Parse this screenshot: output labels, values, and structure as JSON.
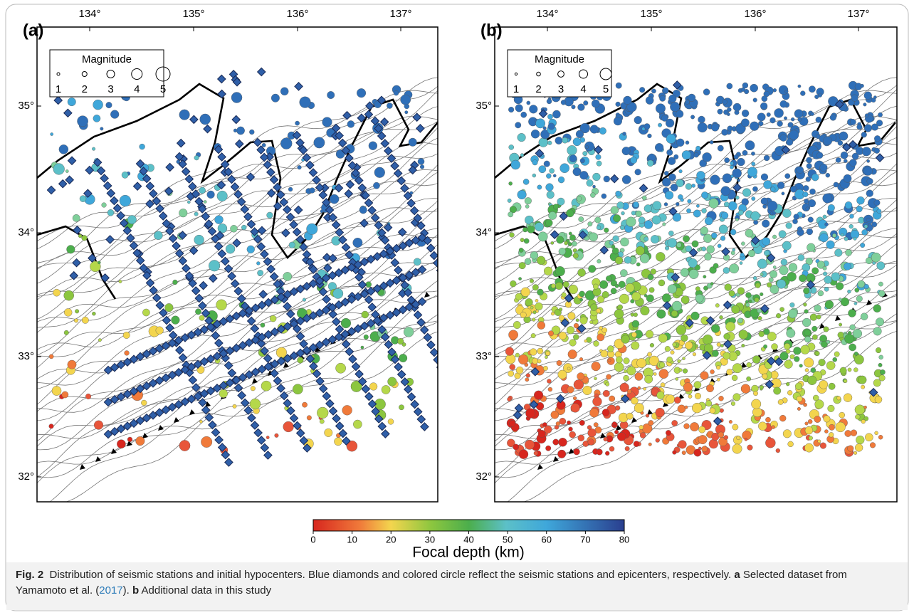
{
  "panels": [
    {
      "label": "(a)",
      "lon_ticks": [
        "134°",
        "135°",
        "136°",
        "137°"
      ],
      "lat_ticks": [
        "35°",
        "34°",
        "33°",
        "32°"
      ],
      "legend": {
        "title": "Magnitude",
        "labels": [
          "1",
          "2",
          "3",
          "4",
          "5"
        ]
      }
    },
    {
      "label": "(b)",
      "lon_ticks": [
        "134°",
        "135°",
        "136°",
        "137°"
      ],
      "lat_ticks": [
        "35°",
        "34°",
        "33°",
        "32°"
      ],
      "legend": {
        "title": "Magnitude",
        "labels": [
          "1",
          "2",
          "3",
          "4",
          "5"
        ]
      }
    }
  ],
  "colorbar": {
    "ticks": [
      0,
      10,
      20,
      30,
      40,
      50,
      60,
      70,
      80
    ],
    "label": "Focal depth (km)"
  },
  "caption": {
    "label": "Fig. 2",
    "text": "Distribution of seismic stations and initial hypocenters. Blue diamonds and colored circle reflect the seismic stations and epicenters, respectively.",
    "part_a_label": "a",
    "part_a_text": "Selected dataset from Yamamoto et al. (",
    "part_a_ref": "2017",
    "part_a_end": ").",
    "part_b_label": "b",
    "part_b_text": "Additional data in this study"
  }
}
